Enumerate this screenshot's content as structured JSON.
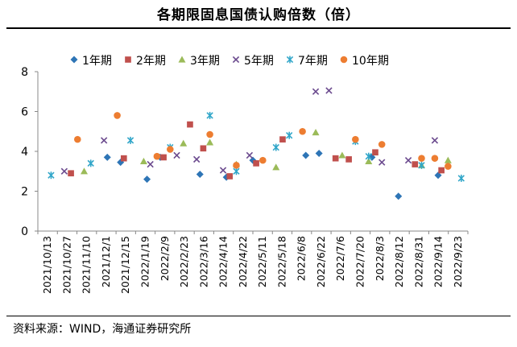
{
  "title": "各期限固息国债认购倍数（倍）",
  "source": "资料来源：WIND，海通证券研究所",
  "chart_data": {
    "type": "scatter",
    "title": "各期限固息国债认购倍数（倍）",
    "xlabel": "",
    "ylabel": "",
    "ylim": [
      0,
      8
    ],
    "yticks": [
      0,
      2,
      4,
      6,
      8
    ],
    "grid": false,
    "legend_position": "top",
    "x_tick_labels": [
      "2021/10/13",
      "2021/10/27",
      "2021/11/10",
      "2021/12/1",
      "2021/12/15",
      "2022/1/19",
      "2022/2/9",
      "2022/2/23",
      "2022/3/16",
      "2022/4/14",
      "2022/4/22",
      "2022/5/11",
      "2022/5/18",
      "2022/6/8",
      "2022/6/22",
      "2022/7/6",
      "2022/7/20",
      "2022/8/3",
      "2022/8/12",
      "2022/8/31",
      "2022/9/14",
      "2022/9/23"
    ],
    "series": [
      {
        "name": "1年期",
        "marker": "diamond",
        "color": "#2E75B6",
        "points": [
          {
            "x": 5.25,
            "y": 3.7
          },
          {
            "x": 6.25,
            "y": 3.45
          },
          {
            "x": 8.25,
            "y": 2.6
          },
          {
            "x": 9.25,
            "y": 3.7
          },
          {
            "x": 12.25,
            "y": 2.85
          },
          {
            "x": 14.25,
            "y": 2.7
          },
          {
            "x": 16.25,
            "y": 3.55
          },
          {
            "x": 20.25,
            "y": 3.8
          },
          {
            "x": 21.25,
            "y": 3.9
          },
          {
            "x": 25.25,
            "y": 3.7
          },
          {
            "x": 27.25,
            "y": 1.75
          },
          {
            "x": 30.25,
            "y": 2.8
          }
        ]
      },
      {
        "name": "2年期",
        "marker": "square",
        "color": "#C0504D",
        "points": [
          {
            "x": 2.5,
            "y": 2.9
          },
          {
            "x": 6.5,
            "y": 3.65
          },
          {
            "x": 9.5,
            "y": 3.7
          },
          {
            "x": 11.5,
            "y": 5.35
          },
          {
            "x": 12.5,
            "y": 4.15
          },
          {
            "x": 14.5,
            "y": 2.75
          },
          {
            "x": 16.5,
            "y": 3.4
          },
          {
            "x": 18.5,
            "y": 4.6
          },
          {
            "x": 22.5,
            "y": 3.65
          },
          {
            "x": 23.5,
            "y": 3.6
          },
          {
            "x": 25.5,
            "y": 3.95
          },
          {
            "x": 28.5,
            "y": 3.35
          },
          {
            "x": 30.5,
            "y": 3.05
          }
        ]
      },
      {
        "name": "3年期",
        "marker": "triangle",
        "color": "#9BBB59",
        "points": [
          {
            "x": 3.5,
            "y": 3.0
          },
          {
            "x": 8.0,
            "y": 3.5
          },
          {
            "x": 11.0,
            "y": 4.4
          },
          {
            "x": 13.0,
            "y": 4.45
          },
          {
            "x": 15.0,
            "y": 3.35
          },
          {
            "x": 18.0,
            "y": 3.2
          },
          {
            "x": 21.0,
            "y": 4.95
          },
          {
            "x": 23.0,
            "y": 3.8
          },
          {
            "x": 25.0,
            "y": 3.5
          },
          {
            "x": 29.0,
            "y": 3.3
          },
          {
            "x": 31.0,
            "y": 3.55
          }
        ]
      },
      {
        "name": "5年期",
        "marker": "x",
        "color": "#6B4A8E",
        "points": [
          {
            "x": 2.0,
            "y": 3.0
          },
          {
            "x": 5.0,
            "y": 4.55
          },
          {
            "x": 8.5,
            "y": 3.35
          },
          {
            "x": 10.5,
            "y": 3.8
          },
          {
            "x": 12.0,
            "y": 3.6
          },
          {
            "x": 14.0,
            "y": 3.05
          },
          {
            "x": 16.0,
            "y": 3.8
          },
          {
            "x": 21.0,
            "y": 7.0
          },
          {
            "x": 22.0,
            "y": 7.05
          },
          {
            "x": 26.0,
            "y": 3.45
          },
          {
            "x": 28.0,
            "y": 3.55
          },
          {
            "x": 30.0,
            "y": 4.55
          }
        ]
      },
      {
        "name": "7年期",
        "marker": "asterisk",
        "color": "#31A6C9",
        "points": [
          {
            "x": 1.0,
            "y": 2.8
          },
          {
            "x": 4.0,
            "y": 3.4
          },
          {
            "x": 7.0,
            "y": 4.55
          },
          {
            "x": 10.0,
            "y": 4.2
          },
          {
            "x": 13.0,
            "y": 5.8
          },
          {
            "x": 15.0,
            "y": 3.0
          },
          {
            "x": 18.0,
            "y": 4.2
          },
          {
            "x": 19.0,
            "y": 4.8
          },
          {
            "x": 24.0,
            "y": 4.5
          },
          {
            "x": 25.0,
            "y": 3.75
          },
          {
            "x": 29.0,
            "y": 3.3
          },
          {
            "x": 32.0,
            "y": 2.65
          }
        ]
      },
      {
        "name": "10年期",
        "marker": "circle",
        "color": "#ED7D31",
        "points": [
          {
            "x": 3.0,
            "y": 4.6
          },
          {
            "x": 6.0,
            "y": 5.8
          },
          {
            "x": 9.0,
            "y": 3.75
          },
          {
            "x": 10.0,
            "y": 4.1
          },
          {
            "x": 13.0,
            "y": 4.85
          },
          {
            "x": 15.0,
            "y": 3.3
          },
          {
            "x": 17.0,
            "y": 3.55
          },
          {
            "x": 20.0,
            "y": 5.0
          },
          {
            "x": 24.0,
            "y": 4.6
          },
          {
            "x": 26.0,
            "y": 4.35
          },
          {
            "x": 29.0,
            "y": 3.65
          },
          {
            "x": 30.0,
            "y": 3.65
          },
          {
            "x": 31.0,
            "y": 3.25
          }
        ]
      }
    ]
  }
}
